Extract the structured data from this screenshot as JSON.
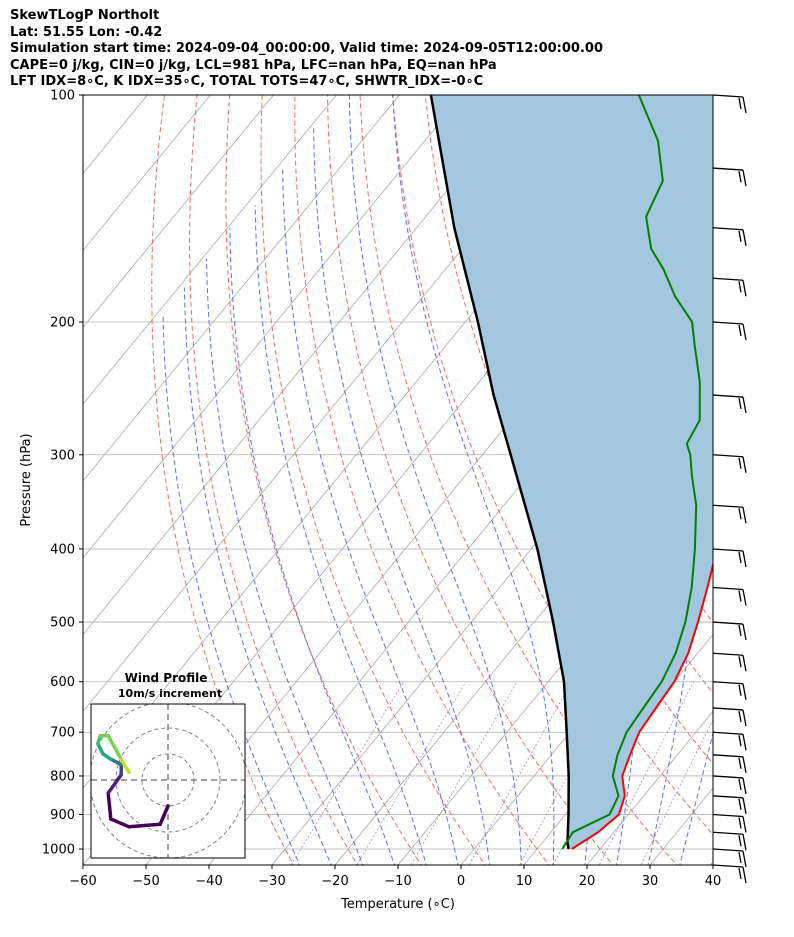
{
  "header": {
    "line1": "SkewTLogP Northolt",
    "line2": "Lat: 51.55   Lon: -0.42",
    "line3": "Simulation start time: 2024-09-04_00:00:00, Valid time: 2024-09-05T12:00:00.00",
    "line4": "CAPE=0 j/kg, CIN=0 j/kg, LCL=981 hPa, LFC=nan hPa, EQ=nan hPa",
    "line5": "LFT IDX=8∘C, K IDX=35∘C, TOTAL TOTS=47∘C, SHWTR_IDX=-0∘C"
  },
  "chart_data": [
    {
      "type": "line",
      "title": "SkewTLogP Northolt",
      "xlabel": "Temperature (∘C)",
      "ylabel": "Pressure (hPa)",
      "xlim": [
        -60,
        40
      ],
      "ylim": [
        1050,
        100
      ],
      "y_scale": "log",
      "grid": true,
      "x_ticks": [
        -60,
        -50,
        -40,
        -30,
        -20,
        -10,
        0,
        10,
        20,
        30,
        40
      ],
      "y_ticks": [
        100,
        200,
        300,
        400,
        500,
        600,
        700,
        800,
        900,
        1000
      ],
      "colors": {
        "temperature": "#ff0000",
        "dewpoint": "#008000",
        "parcel": "#000000",
        "fill": "#a4c7e0"
      },
      "series": [],
      "temperature_profile": [
        {
          "p": 1000,
          "t": 15.5
        },
        {
          "p": 950,
          "t": 17.5
        },
        {
          "p": 900,
          "t": 18.5
        },
        {
          "p": 850,
          "t": 17
        },
        {
          "p": 800,
          "t": 14
        },
        {
          "p": 750,
          "t": 12.5
        },
        {
          "p": 700,
          "t": 11
        },
        {
          "p": 650,
          "t": 10.5
        },
        {
          "p": 600,
          "t": 10
        },
        {
          "p": 550,
          "t": 8.5
        },
        {
          "p": 500,
          "t": 6
        },
        {
          "p": 450,
          "t": 3
        },
        {
          "p": 400,
          "t": -0.5
        },
        {
          "p": 350,
          "t": -5
        },
        {
          "p": 310,
          "t": -9
        },
        {
          "p": 290,
          "t": -11.5
        },
        {
          "p": 260,
          "t": -17
        },
        {
          "p": 230,
          "t": -22
        },
        {
          "p": 215,
          "t": -25.5
        },
        {
          "p": 205,
          "t": -24
        },
        {
          "p": 190,
          "t": -18
        },
        {
          "p": 175,
          "t": -12
        },
        {
          "p": 160,
          "t": -10
        },
        {
          "p": 140,
          "t": -12
        },
        {
          "p": 120,
          "t": -16
        },
        {
          "p": 100,
          "t": -26
        }
      ],
      "dewpoint_profile": [
        {
          "p": 1000,
          "t": 14
        },
        {
          "p": 950,
          "t": 13.5
        },
        {
          "p": 900,
          "t": 17
        },
        {
          "p": 850,
          "t": 16
        },
        {
          "p": 800,
          "t": 12.5
        },
        {
          "p": 750,
          "t": 10.5
        },
        {
          "p": 700,
          "t": 9
        },
        {
          "p": 650,
          "t": 8.5
        },
        {
          "p": 600,
          "t": 8
        },
        {
          "p": 550,
          "t": 6.5
        },
        {
          "p": 500,
          "t": 4
        },
        {
          "p": 450,
          "t": 0.5
        },
        {
          "p": 400,
          "t": -4
        },
        {
          "p": 350,
          "t": -9.5
        },
        {
          "p": 320,
          "t": -14
        },
        {
          "p": 300,
          "t": -17
        },
        {
          "p": 290,
          "t": -19
        },
        {
          "p": 270,
          "t": -20
        },
        {
          "p": 240,
          "t": -25
        },
        {
          "p": 215,
          "t": -30.5
        },
        {
          "p": 200,
          "t": -34
        },
        {
          "p": 185,
          "t": -40
        },
        {
          "p": 170,
          "t": -45.5
        },
        {
          "p": 160,
          "t": -50
        },
        {
          "p": 145,
          "t": -55
        },
        {
          "p": 130,
          "t": -57
        },
        {
          "p": 115,
          "t": -63
        },
        {
          "p": 100,
          "t": -72
        }
      ],
      "parcel_profile": [
        {
          "p": 1000,
          "t": 15
        },
        {
          "p": 981,
          "t": 14
        },
        {
          "p": 900,
          "t": 10.5
        },
        {
          "p": 800,
          "t": 5.5
        },
        {
          "p": 700,
          "t": -0.5
        },
        {
          "p": 600,
          "t": -7.5
        },
        {
          "p": 500,
          "t": -17
        },
        {
          "p": 400,
          "t": -29
        },
        {
          "p": 300,
          "t": -45.5
        },
        {
          "p": 250,
          "t": -56
        },
        {
          "p": 200,
          "t": -68
        },
        {
          "p": 150,
          "t": -84
        },
        {
          "p": 100,
          "t": -105
        }
      ],
      "wind_barbs": [
        {
          "p": 1050
        },
        {
          "p": 1000
        },
        {
          "p": 950
        },
        {
          "p": 900
        },
        {
          "p": 850
        },
        {
          "p": 800
        },
        {
          "p": 750
        },
        {
          "p": 700
        },
        {
          "p": 650
        },
        {
          "p": 600
        },
        {
          "p": 550
        },
        {
          "p": 500
        },
        {
          "p": 450
        },
        {
          "p": 400
        },
        {
          "p": 350
        },
        {
          "p": 300
        },
        {
          "p": 250
        },
        {
          "p": 200
        },
        {
          "p": 175
        },
        {
          "p": 150
        },
        {
          "p": 125
        },
        {
          "p": 100
        }
      ]
    },
    {
      "type": "line",
      "title": "Wind Profile\n10m/s increment",
      "ring_increment_ms": 10,
      "hodograph": [
        {
          "u": 0,
          "v": -10
        },
        {
          "u": -3,
          "v": -17
        },
        {
          "u": -15,
          "v": -18
        },
        {
          "u": -22,
          "v": -15
        },
        {
          "u": -23,
          "v": -5
        },
        {
          "u": -18,
          "v": 2
        },
        {
          "u": -18,
          "v": 6
        },
        {
          "u": -22,
          "v": 8
        },
        {
          "u": -25,
          "v": 10
        },
        {
          "u": -27,
          "v": 14
        },
        {
          "u": -26,
          "v": 17
        },
        {
          "u": -23,
          "v": 17
        },
        {
          "u": -18,
          "v": 8
        },
        {
          "u": -15,
          "v": 3
        }
      ]
    }
  ]
}
